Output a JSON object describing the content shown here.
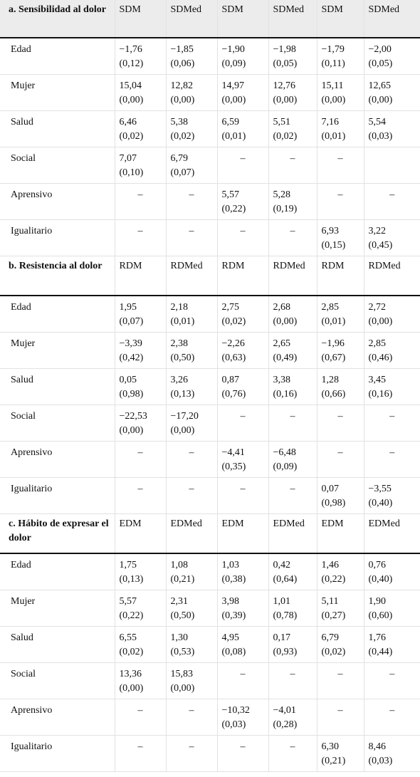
{
  "sections": [
    {
      "title": "a. Sensibilidad al dolor",
      "headers": [
        "SDM",
        "SDMed",
        "SDM",
        "SDMed",
        "SDM",
        "SDMed"
      ],
      "rows": [
        {
          "label": "Edad",
          "cells": [
            [
              "−1,76",
              "(0,12)"
            ],
            [
              "−1,85",
              "(0,06)"
            ],
            [
              "−1,90",
              "(0,09)"
            ],
            [
              "−1,98",
              "(0,05)"
            ],
            [
              "−1,79",
              "(0,11)"
            ],
            [
              "−2,00",
              "(0,05)"
            ]
          ]
        },
        {
          "label": "Mujer",
          "cells": [
            [
              "15,04",
              "(0,00)"
            ],
            [
              "12,82",
              "(0,00)"
            ],
            [
              "14,97",
              "(0,00)"
            ],
            [
              "12,76",
              "(0,00)"
            ],
            [
              "15,11",
              "(0,00)"
            ],
            [
              "12,65",
              "(0,00)"
            ]
          ]
        },
        {
          "label": "Salud",
          "cells": [
            [
              "6,46",
              "(0,02)"
            ],
            [
              "5,38",
              "(0,02)"
            ],
            [
              "6,59",
              "(0,01)"
            ],
            [
              "5,51",
              "(0,02)"
            ],
            [
              "7,16",
              "(0,01)"
            ],
            [
              "5,54",
              "(0,03)"
            ]
          ]
        },
        {
          "label": "Social",
          "cells": [
            [
              "7,07",
              "(0,10)"
            ],
            [
              "6,79",
              "(0,07)"
            ],
            "–",
            "–",
            "–",
            null
          ]
        },
        {
          "label": "Aprensivo",
          "cells": [
            "–",
            "–",
            [
              "5,57",
              "(0,22)"
            ],
            [
              "5,28",
              "(0,19)"
            ],
            "–",
            "–"
          ]
        },
        {
          "label": "Igualitario",
          "cells": [
            "–",
            "–",
            "–",
            "–",
            [
              "6,93",
              "(0,15)"
            ],
            [
              "3,22",
              "(0,45)"
            ]
          ]
        }
      ]
    },
    {
      "title": "b. Resistencia al dolor",
      "headers": [
        "RDM",
        "RDMed",
        "RDM",
        "RDMed",
        "RDM",
        "RDMed"
      ],
      "rows": [
        {
          "label": "Edad",
          "cells": [
            [
              "1,95",
              "(0,07)"
            ],
            [
              "2,18",
              "(0,01)"
            ],
            [
              "2,75",
              "(0,02)"
            ],
            [
              "2,68",
              "(0,00)"
            ],
            [
              "2,85",
              "(0,01)"
            ],
            [
              "2,72",
              "(0,00)"
            ]
          ]
        },
        {
          "label": "Mujer",
          "cells": [
            [
              "−3,39",
              "(0,42)"
            ],
            [
              "2,38",
              "(0,50)"
            ],
            [
              "−2,26",
              "(0,63)"
            ],
            [
              "2,65",
              "(0,49)"
            ],
            [
              "−1,96",
              "(0,67)"
            ],
            [
              "2,85",
              "(0,46)"
            ]
          ]
        },
        {
          "label": "Salud",
          "cells": [
            [
              "0,05",
              "(0,98)"
            ],
            [
              "3,26",
              "(0,13)"
            ],
            [
              "0,87",
              "(0,76)"
            ],
            [
              "3,38",
              "(0,16)"
            ],
            [
              "1,28",
              "(0,66)"
            ],
            [
              "3,45",
              "(0,16)"
            ]
          ]
        },
        {
          "label": "Social",
          "cells": [
            [
              "−22,53",
              "(0,00)"
            ],
            [
              "−17,20",
              "(0,00)"
            ],
            "–",
            "–",
            "–",
            "–"
          ]
        },
        {
          "label": "Aprensivo",
          "cells": [
            "–",
            "–",
            [
              "−4,41",
              "(0,35)"
            ],
            [
              "−6,48",
              "(0,09)"
            ],
            "–",
            "–"
          ]
        },
        {
          "label": "Igualitario",
          "cells": [
            "–",
            "–",
            "–",
            "–",
            [
              "0,07",
              "(0,98)"
            ],
            [
              "−3,55",
              "(0,40)"
            ]
          ]
        }
      ]
    },
    {
      "title": "c. Hábito de expresar el dolor",
      "headers": [
        "EDM",
        "EDMed",
        "EDM",
        "EDMed",
        "EDM",
        "EDMed"
      ],
      "rows": [
        {
          "label": "Edad",
          "cells": [
            [
              "1,75",
              "(0,13)"
            ],
            [
              "1,08",
              "(0,21)"
            ],
            [
              "1,03",
              "(0,38)"
            ],
            [
              "0,42",
              "(0,64)"
            ],
            [
              "1,46",
              "(0,22)"
            ],
            [
              "0,76",
              "(0,40)"
            ]
          ]
        },
        {
          "label": "Mujer",
          "cells": [
            [
              "5,57",
              "(0,22)"
            ],
            [
              "2,31",
              "(0,50)"
            ],
            [
              "3,98",
              "(0,39)"
            ],
            [
              "1,01",
              "(0,78)"
            ],
            [
              "5,11",
              "(0,27)"
            ],
            [
              "1,90",
              "(0,60)"
            ]
          ]
        },
        {
          "label": "Salud",
          "cells": [
            [
              "6,55",
              "(0,02)"
            ],
            [
              "1,30",
              "(0,53)"
            ],
            [
              "4,95",
              "(0,08)"
            ],
            [
              "0,17",
              "(0,93)"
            ],
            [
              "6,79",
              "(0,02)"
            ],
            [
              "1,76",
              "(0,44)"
            ]
          ]
        },
        {
          "label": "Social",
          "cells": [
            [
              "13,36",
              "(0,00)"
            ],
            [
              "15,83",
              "(0,00)"
            ],
            "–",
            "–",
            "–",
            "–"
          ]
        },
        {
          "label": "Aprensivo",
          "cells": [
            "–",
            "–",
            [
              "−10,32",
              "(0,03)"
            ],
            [
              "−4,01",
              "(0,28)"
            ],
            "–",
            "–"
          ]
        },
        {
          "label": "Igualitario",
          "cells": [
            "–",
            "–",
            "–",
            "–",
            [
              "6,30",
              "(0,21)"
            ],
            [
              "8,46",
              "(0,03)"
            ]
          ]
        }
      ]
    }
  ]
}
